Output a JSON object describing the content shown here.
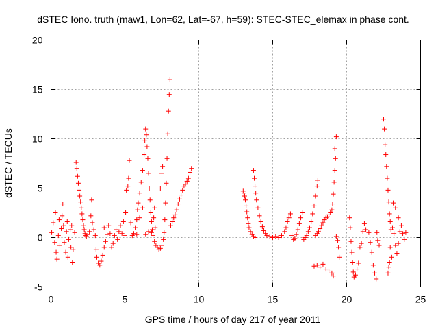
{
  "chart_data": {
    "type": "scatter",
    "title": "dSTEC Iono. truth (maw1, Lon=62, Lat=-67, h=59): STEC-STEC_elemax in phase cont.",
    "xlabel": "GPS time / hours of day 217 of year 2011",
    "ylabel": "dSTEC  / TECUs",
    "xlim": [
      0,
      25
    ],
    "ylim": [
      -5,
      20
    ],
    "xticks": [
      0,
      5,
      10,
      15,
      20,
      25
    ],
    "yticks": [
      -5,
      0,
      5,
      10,
      15,
      20
    ],
    "xtick_labels": [
      "0",
      "5",
      "10",
      "15",
      "20",
      "25"
    ],
    "ytick_labels": [
      "-5",
      "0",
      "5",
      "10",
      "15",
      "20"
    ],
    "grid": true,
    "marker": "+",
    "color": "#ff0000",
    "series": [
      {
        "points": [
          [
            0.05,
            0.5
          ],
          [
            0.15,
            1.5
          ],
          [
            0.25,
            -0.5
          ],
          [
            0.3,
            2.5
          ],
          [
            0.35,
            -1.5
          ],
          [
            0.4,
            -2.2
          ],
          [
            0.5,
            0.2
          ],
          [
            0.55,
            1.8
          ],
          [
            0.6,
            -0.8
          ],
          [
            0.7,
            0.9
          ],
          [
            0.75,
            2.2
          ],
          [
            0.8,
            3.4
          ],
          [
            0.85,
            1.2
          ],
          [
            0.9,
            -0.5
          ],
          [
            1.0,
            -1.5
          ],
          [
            1.05,
            0.6
          ],
          [
            1.1,
            1.6
          ],
          [
            1.15,
            -2.0
          ],
          [
            1.2,
            -0.2
          ],
          [
            1.3,
            0.8
          ],
          [
            1.35,
            -1.0
          ],
          [
            1.4,
            1.2
          ],
          [
            1.45,
            -2.5
          ],
          [
            1.5,
            -1.2
          ],
          [
            1.6,
            0.5
          ],
          [
            1.7,
            7.6
          ],
          [
            1.75,
            7.0
          ],
          [
            1.8,
            6.2
          ],
          [
            1.85,
            5.5
          ],
          [
            1.9,
            4.8
          ],
          [
            1.95,
            4.2
          ],
          [
            2.0,
            3.6
          ],
          [
            2.05,
            3.0
          ],
          [
            2.1,
            2.4
          ],
          [
            2.15,
            1.8
          ],
          [
            2.2,
            1.2
          ],
          [
            2.25,
            0.8
          ],
          [
            2.3,
            0.4
          ],
          [
            2.35,
            0.2
          ],
          [
            2.4,
            0.1
          ],
          [
            2.5,
            0.3
          ],
          [
            2.6,
            0.6
          ],
          [
            2.7,
            2.2
          ],
          [
            2.75,
            3.8
          ],
          [
            2.8,
            1.5
          ],
          [
            2.9,
            0.8
          ],
          [
            3.0,
            0.2
          ],
          [
            3.05,
            -1.2
          ],
          [
            3.1,
            -2.0
          ],
          [
            3.2,
            -2.6
          ],
          [
            3.3,
            -2.8
          ],
          [
            3.4,
            -2.4
          ],
          [
            3.5,
            -1.8
          ],
          [
            3.6,
            -1.0
          ],
          [
            3.7,
            -0.4
          ],
          [
            3.8,
            0.3
          ],
          [
            3.6,
            1.0
          ],
          [
            3.9,
            1.2
          ],
          [
            4.0,
            0.4
          ],
          [
            4.1,
            -1.0
          ],
          [
            4.2,
            -0.6
          ],
          [
            4.3,
            0.2
          ],
          [
            4.4,
            0.8
          ],
          [
            4.5,
            -0.2
          ],
          [
            4.6,
            0.6
          ],
          [
            4.7,
            1.2
          ],
          [
            4.8,
            0.4
          ],
          [
            4.9,
            1.6
          ],
          [
            5.0,
            0.2
          ],
          [
            5.05,
            2.5
          ],
          [
            5.1,
            4.8
          ],
          [
            5.2,
            5.2
          ],
          [
            5.25,
            6.0
          ],
          [
            5.3,
            7.8
          ],
          [
            5.4,
            1.5
          ],
          [
            5.5,
            0.2
          ],
          [
            5.6,
            0.4
          ],
          [
            5.7,
            1.0
          ],
          [
            5.8,
            1.8
          ],
          [
            5.85,
            2.8
          ],
          [
            5.9,
            3.5
          ],
          [
            6.0,
            4.5
          ],
          [
            6.1,
            5.6
          ],
          [
            6.2,
            6.8
          ],
          [
            6.3,
            8.4
          ],
          [
            6.35,
            9.8
          ],
          [
            6.4,
            11.0
          ],
          [
            6.45,
            10.4
          ],
          [
            6.5,
            9.2
          ],
          [
            6.55,
            8.0
          ],
          [
            6.6,
            6.5
          ],
          [
            6.65,
            5.0
          ],
          [
            6.7,
            3.8
          ],
          [
            6.75,
            2.5
          ],
          [
            6.8,
            1.6
          ],
          [
            6.85,
            0.8
          ],
          [
            6.9,
            0.2
          ],
          [
            7.0,
            -0.4
          ],
          [
            7.1,
            -0.8
          ],
          [
            7.2,
            -1.0
          ],
          [
            7.3,
            -1.2
          ],
          [
            7.4,
            -1.1
          ],
          [
            7.5,
            -0.8
          ],
          [
            7.6,
            -0.2
          ],
          [
            7.65,
            0.5
          ],
          [
            7.7,
            1.8
          ],
          [
            7.75,
            3.5
          ],
          [
            7.8,
            5.5
          ],
          [
            7.85,
            8.0
          ],
          [
            7.9,
            10.5
          ],
          [
            7.95,
            12.8
          ],
          [
            8.0,
            14.5
          ],
          [
            8.05,
            16.0
          ],
          [
            8.1,
            1.2
          ],
          [
            8.2,
            1.6
          ],
          [
            8.3,
            2.0
          ],
          [
            8.4,
            2.3
          ],
          [
            8.5,
            2.8
          ],
          [
            8.6,
            3.4
          ],
          [
            8.7,
            3.9
          ],
          [
            8.8,
            4.3
          ],
          [
            8.9,
            4.8
          ],
          [
            9.0,
            5.2
          ],
          [
            9.1,
            5.4
          ],
          [
            9.2,
            5.7
          ],
          [
            9.3,
            6.0
          ],
          [
            9.4,
            6.6
          ],
          [
            9.5,
            7.0
          ],
          [
            6.2,
            3.0
          ],
          [
            6.0,
            2.0
          ],
          [
            7.05,
            1.0
          ],
          [
            6.95,
            2.0
          ],
          [
            7.0,
            3.0
          ],
          [
            7.4,
            5.0
          ],
          [
            7.5,
            6.5
          ],
          [
            7.55,
            7.2
          ],
          [
            6.8,
            0.5
          ],
          [
            6.4,
            0.3
          ],
          [
            6.6,
            0.6
          ],
          [
            5.8,
            0.3
          ],
          [
            13.0,
            4.7
          ],
          [
            13.05,
            4.5
          ],
          [
            13.1,
            4.2
          ],
          [
            13.15,
            3.8
          ],
          [
            13.2,
            3.2
          ],
          [
            13.25,
            2.6
          ],
          [
            13.3,
            2.0
          ],
          [
            13.35,
            1.4
          ],
          [
            13.4,
            1.0
          ],
          [
            13.5,
            0.6
          ],
          [
            13.6,
            0.3
          ],
          [
            13.7,
            0.1
          ],
          [
            13.8,
            0.0
          ],
          [
            13.7,
            6.8
          ],
          [
            13.75,
            6.0
          ],
          [
            13.8,
            5.2
          ],
          [
            13.85,
            4.5
          ],
          [
            13.9,
            3.8
          ],
          [
            14.0,
            3.0
          ],
          [
            14.1,
            2.2
          ],
          [
            14.2,
            1.6
          ],
          [
            14.3,
            1.1
          ],
          [
            14.4,
            0.7
          ],
          [
            14.5,
            0.4
          ],
          [
            14.6,
            0.2
          ],
          [
            14.8,
            0.1
          ],
          [
            15.0,
            0.0
          ],
          [
            15.2,
            0.1
          ],
          [
            15.4,
            0.0
          ],
          [
            15.6,
            0.2
          ],
          [
            15.8,
            0.6
          ],
          [
            15.9,
            1.0
          ],
          [
            16.0,
            1.6
          ],
          [
            16.1,
            2.0
          ],
          [
            16.2,
            2.4
          ],
          [
            16.3,
            0.2
          ],
          [
            16.4,
            -0.2
          ],
          [
            16.5,
            -0.1
          ],
          [
            16.6,
            0.3
          ],
          [
            16.7,
            0.8
          ],
          [
            16.8,
            1.4
          ],
          [
            16.9,
            2.0
          ],
          [
            17.0,
            2.5
          ],
          [
            17.1,
            -0.2
          ],
          [
            17.2,
            0.0
          ],
          [
            17.3,
            0.2
          ],
          [
            17.4,
            0.6
          ],
          [
            17.5,
            1.0
          ],
          [
            17.6,
            1.6
          ],
          [
            17.7,
            2.4
          ],
          [
            17.8,
            3.2
          ],
          [
            17.9,
            4.2
          ],
          [
            18.0,
            5.2
          ],
          [
            18.05,
            5.8
          ],
          [
            17.9,
            0.2
          ],
          [
            18.0,
            0.4
          ],
          [
            18.1,
            0.6
          ],
          [
            18.2,
            0.9
          ],
          [
            18.3,
            1.2
          ],
          [
            18.4,
            1.5
          ],
          [
            18.5,
            1.8
          ],
          [
            18.6,
            2.0
          ],
          [
            18.7,
            2.1
          ],
          [
            18.8,
            2.3
          ],
          [
            18.9,
            2.5
          ],
          [
            19.0,
            2.8
          ],
          [
            19.05,
            3.4
          ],
          [
            19.1,
            4.4
          ],
          [
            19.15,
            5.6
          ],
          [
            19.2,
            6.8
          ],
          [
            19.25,
            8.0
          ],
          [
            19.3,
            10.2
          ],
          [
            19.2,
            9.0
          ],
          [
            17.8,
            -2.9
          ],
          [
            18.0,
            -2.8
          ],
          [
            18.2,
            -3.0
          ],
          [
            18.4,
            -2.7
          ],
          [
            18.6,
            -3.2
          ],
          [
            18.8,
            -3.4
          ],
          [
            19.0,
            -3.6
          ],
          [
            19.1,
            -3.9
          ],
          [
            19.3,
            0.1
          ],
          [
            19.4,
            -0.3
          ],
          [
            19.5,
            -2.0
          ],
          [
            19.45,
            -1.0
          ],
          [
            20.2,
            2.0
          ],
          [
            20.25,
            1.0
          ],
          [
            20.3,
            -0.4
          ],
          [
            20.35,
            -1.5
          ],
          [
            20.4,
            -2.5
          ],
          [
            20.45,
            -3.5
          ],
          [
            20.5,
            -4.0
          ],
          [
            20.6,
            -3.8
          ],
          [
            20.7,
            -3.2
          ],
          [
            20.8,
            -2.6
          ],
          [
            20.9,
            -1.0
          ],
          [
            21.0,
            -0.6
          ],
          [
            21.1,
            0.6
          ],
          [
            21.2,
            1.4
          ],
          [
            21.3,
            0.8
          ],
          [
            21.5,
            0.5
          ],
          [
            21.6,
            -0.5
          ],
          [
            21.7,
            -1.5
          ],
          [
            21.8,
            -2.8
          ],
          [
            21.9,
            -3.6
          ],
          [
            22.0,
            -4.2
          ],
          [
            22.05,
            0.5
          ],
          [
            22.1,
            -0.3
          ],
          [
            22.2,
            -0.8
          ],
          [
            22.5,
            12.0
          ],
          [
            22.55,
            11.0
          ],
          [
            22.6,
            9.4
          ],
          [
            22.65,
            8.4
          ],
          [
            22.7,
            7.2
          ],
          [
            22.75,
            6.0
          ],
          [
            22.8,
            4.8
          ],
          [
            22.85,
            3.6
          ],
          [
            22.9,
            2.4
          ],
          [
            22.95,
            1.6
          ],
          [
            23.0,
            0.8
          ],
          [
            22.8,
            -3.6
          ],
          [
            22.85,
            -3.0
          ],
          [
            22.9,
            -2.5
          ],
          [
            23.1,
            1.0
          ],
          [
            23.2,
            0.4
          ],
          [
            23.3,
            -0.8
          ],
          [
            23.4,
            -1.6
          ],
          [
            23.5,
            -0.6
          ],
          [
            23.6,
            0.6
          ],
          [
            23.7,
            1.2
          ],
          [
            23.8,
            0.4
          ],
          [
            23.9,
            -0.2
          ],
          [
            24.0,
            0.5
          ],
          [
            23.5,
            2.0
          ],
          [
            23.3,
            3.0
          ],
          [
            23.15,
            3.5
          ],
          [
            22.95,
            -1.0
          ],
          [
            23.05,
            -2.0
          ]
        ]
      }
    ]
  }
}
